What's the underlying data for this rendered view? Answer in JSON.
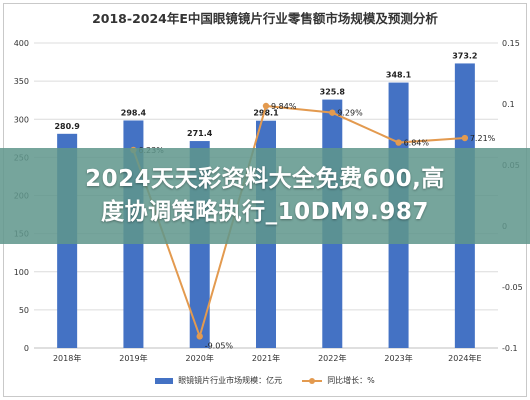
{
  "colors": {
    "bar": "#4472C4",
    "line": "#E39A4F",
    "grid": "#dcdcdc",
    "axis_text": "#333333",
    "banner_bg": "#5F968C",
    "banner_text": "#ffffff"
  },
  "banner": {
    "line1": "2024天天彩资料大全免费600,高",
    "line2": "度协调策略执行_10DM9.987"
  },
  "chart_data": {
    "type": "bar",
    "title": "2018-2024年E中国眼镜镜片行业零售额市场规模及预测分析",
    "categories": [
      "2018年",
      "2019年",
      "2020年",
      "2021年",
      "2022年",
      "2023年",
      "2024年E"
    ],
    "series": [
      {
        "name": "眼镜镜片行业市场规模：亿元",
        "type": "bar",
        "axis": "left",
        "values": [
          280.9,
          298.4,
          271.4,
          298.1,
          325.8,
          348.1,
          373.2
        ],
        "labels": [
          "280.9",
          "298.4",
          "271.4",
          "298.1",
          "325.8",
          "348.1",
          "373.2"
        ]
      },
      {
        "name": "同比增长：%",
        "type": "line",
        "axis": "right",
        "values": [
          null,
          0.0623,
          -0.0905,
          0.0984,
          0.0929,
          0.0684,
          0.0721
        ],
        "labels": [
          "",
          "6.23%",
          "-9.05%",
          "9.84%",
          "9.29%",
          "6.84%",
          "7.21%"
        ]
      }
    ],
    "y_left": {
      "ylim": [
        0,
        400
      ],
      "ticks": [
        0,
        50,
        100,
        150,
        200,
        250,
        300,
        350,
        400
      ],
      "tick_labels": [
        "0",
        "50",
        "100",
        "150",
        "200",
        "250",
        "300",
        "350",
        "400"
      ]
    },
    "y_right": {
      "ylim": [
        -0.1,
        0.15
      ],
      "ticks": [
        -0.1,
        -0.05,
        0,
        0.05,
        0.1,
        0.15
      ],
      "tick_labels": [
        "-0.1",
        "-0.05",
        "0",
        "0.05",
        "0.1",
        "0.15"
      ]
    },
    "grid": true,
    "legend": "bottom"
  }
}
